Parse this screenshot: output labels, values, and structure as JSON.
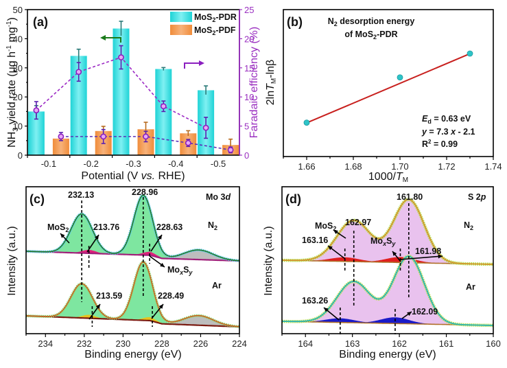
{
  "chart_data": [
    {
      "panel": "(a)",
      "type": "bar",
      "title": "",
      "xlabel": "Potential (V vs. RHE)",
      "xlabel_parts": [
        "Potential (V ",
        "vs.",
        " RHE)"
      ],
      "ylabel": "NH3 yield rate (μg h-1 mg-1)",
      "ylabel_parts": {
        "pre": "NH",
        "sub": "3",
        "mid": " yield rate (μg h",
        "sup1": "-1",
        "mid2": " mg",
        "sup2": "-1",
        "post": ")"
      },
      "y2label": "Faradaic efficiency (%)",
      "categories": [
        "-0.1",
        "-0.2",
        "-0.3",
        "-0.4",
        "-0.5"
      ],
      "ylim": [
        0,
        50
      ],
      "yticks": [
        "0",
        "10",
        "20",
        "30",
        "40",
        "50"
      ],
      "y2lim": [
        0,
        25
      ],
      "y2ticks": [
        "0",
        "5",
        "10",
        "15",
        "20",
        "25"
      ],
      "series": [
        {
          "name": "MoS2-PDR",
          "legend_pre": "MoS",
          "legend_sub": "2",
          "legend_post": "-PDR",
          "kind": "bar",
          "axis": "left",
          "color": "#1fd3d6",
          "values": [
            15.0,
            34.1,
            43.5,
            29.6,
            22.3
          ],
          "errors": [
            2.0,
            2.3,
            2.5,
            0.5,
            1.5
          ]
        },
        {
          "name": "MoS2-PDF",
          "legend_pre": "MoS",
          "legend_sub": "2",
          "legend_post": "-PDF",
          "kind": "bar",
          "axis": "left",
          "color": "#f08c3a",
          "values": [
            5.7,
            8.3,
            8.9,
            7.5,
            3.5
          ],
          "errors": [
            0.8,
            1.6,
            2.4,
            0.9,
            2.0
          ]
        },
        {
          "name": "FE MoS2-PDR",
          "kind": "line-dashed",
          "axis": "right",
          "color": "#9b27c4",
          "values": [
            7.7,
            14.3,
            16.8,
            8.4,
            4.7
          ],
          "errors": [
            1.5,
            1.6,
            2.0,
            0.9,
            1.8
          ]
        },
        {
          "name": "FE MoS2-PDF",
          "kind": "line-dashed",
          "axis": "right",
          "color": "#5b2fb8",
          "values": [
            3.2,
            3.2,
            3.2,
            2.1,
            0.9
          ],
          "errors": [
            0.7,
            1.2,
            0.9,
            0.6,
            0.5
          ]
        }
      ],
      "legend_position": "top-right",
      "annotations": [
        "left arrow (green) → left axis",
        "right arrow (purple) → right axis"
      ]
    },
    {
      "panel": "(b)",
      "type": "scatter",
      "title": "N2 desorption energy of MoS2-PDR",
      "title_line1": {
        "pre": "N",
        "sub": "2",
        "post": " desorption energy"
      },
      "title_line2": {
        "pre": "of MoS",
        "sub": "2",
        "post": "-PDR"
      },
      "xlabel": "1000/TM",
      "ylabel": "2ln TM-lnβ",
      "xlim": [
        1.65,
        1.74
      ],
      "xticks": [
        "1.66",
        "1.68",
        "1.70",
        "1.72",
        "1.74"
      ],
      "x": [
        1.66,
        1.7,
        1.73
      ],
      "y": [
        10.02,
        10.38,
        10.57
      ],
      "fit": {
        "slope": 7.3,
        "intercept": -2.1,
        "x_range": [
          1.66,
          1.73
        ],
        "color": "#c8201e"
      },
      "point_color": "#2ec4c8",
      "annotations": {
        "ed": "Ed = 0.63 eV",
        "ed_val": " = 0.63 eV",
        "eq": "y = 7.3 x - 2.1",
        "eq_mid": " = 7.3 ",
        "eq_end": " - 2.1",
        "r2": "R2 = 0.99",
        "r2_val": " = 0.99"
      }
    },
    {
      "panel": "(c)",
      "type": "line",
      "title": "Mo 3d",
      "xlabel": "Binding energy (eV)",
      "ylabel": "Intensity (a.u.)",
      "xlim": [
        235,
        224
      ],
      "xticks": [
        "234",
        "232",
        "230",
        "228",
        "226",
        "224"
      ],
      "spectra": [
        {
          "name": "N2",
          "peaks_eV": [
            232.13,
            228.96,
            226.1
          ],
          "labels": [
            "232.13",
            "213.76",
            "228.96",
            "228.63"
          ]
        },
        {
          "name": "Ar",
          "peaks_eV": [
            232.13,
            228.96,
            226.1
          ],
          "labels": [
            "213.59",
            "228.49"
          ]
        }
      ],
      "species_labels": [
        "MoS2",
        "MoxSy"
      ],
      "colors": {
        "fit_fill": "#7ee6a0",
        "fit_line": "#1f7a2c",
        "bg_fill": "#bdbdbd",
        "moxsy_fill": "#e0207a",
        "raw_N2": "#5fc8e8",
        "raw_Ar": "#8fd67a",
        "envelope_Ar": "#c8641e",
        "baseline_N2": "#a0207a",
        "baseline_Ar": "#7a1a10",
        "moxsy_Ar": "#e6c21e"
      }
    },
    {
      "panel": "(d)",
      "type": "line",
      "title": "S 2p",
      "xlabel": "Binding energy (eV)",
      "ylabel": "Intensity (a.u.)",
      "xlim": [
        164.5,
        160
      ],
      "xticks": [
        "164",
        "163",
        "162",
        "161",
        "160"
      ],
      "spectra": [
        {
          "name": "N2",
          "peaks_eV": [
            162.97,
            161.8
          ],
          "minor_peaks_eV": [
            163.16,
            161.98
          ],
          "labels": [
            "162.97",
            "161.80",
            "163.16",
            "161.98"
          ]
        },
        {
          "name": "Ar",
          "peaks_eV": [
            162.97,
            161.8
          ],
          "minor_peaks_eV": [
            163.26,
            162.09
          ],
          "labels": [
            "163.26",
            "162.09"
          ]
        }
      ],
      "species_labels": [
        "MoS2",
        "MoxSy"
      ],
      "colors": {
        "main_fill": "#e9c2ee",
        "minor_N2": "#e01e1e",
        "minor_Ar": "#1a1ac8",
        "envelope_N2": "#d2962a",
        "envelope_Ar": "#2ab4b0",
        "raw": "#b8e05a"
      }
    }
  ],
  "labels": {
    "a": "(a)",
    "b": "(b)",
    "c": "(c)",
    "d": "(d)",
    "mo3d_pre": "Mo 3",
    "mo3d_it": "d",
    "s2p_pre": "S 2",
    "s2p_it": "p",
    "n2_pre": "N",
    "n2_sub": "2",
    "ar": "Ar",
    "mos2_pre": "MoS",
    "mos2_sub": "2",
    "moxsy_a": "Mo",
    "moxsy_x": "x",
    "moxsy_b": "S",
    "moxsy_y": "y",
    "c_232": "232.13",
    "c_213a": "213.76",
    "c_228a": "228.96",
    "c_228b": "228.63",
    "c_213b": "213.59",
    "c_228c": "228.49",
    "d_16297": "162.97",
    "d_16180": "161.80",
    "d_16316": "163.16",
    "d_16198": "161.98",
    "d_16326": "163.26",
    "d_16209": "162.09",
    "intensity": "Intensity (a.u.)",
    "binding": "Binding energy (eV)",
    "b_ylabel_a": "2ln",
    "b_ylabel_T": "T",
    "b_ylabel_M": "M",
    "b_ylabel_b": "-lnβ",
    "b_xlabel_a": "1000/",
    "b_xlabel_T": "T",
    "b_xlabel_M": "M",
    "E": "E",
    "d_sub": "d",
    "y_it": "y",
    "x_it": "x",
    "R": "R",
    "two": "2"
  }
}
